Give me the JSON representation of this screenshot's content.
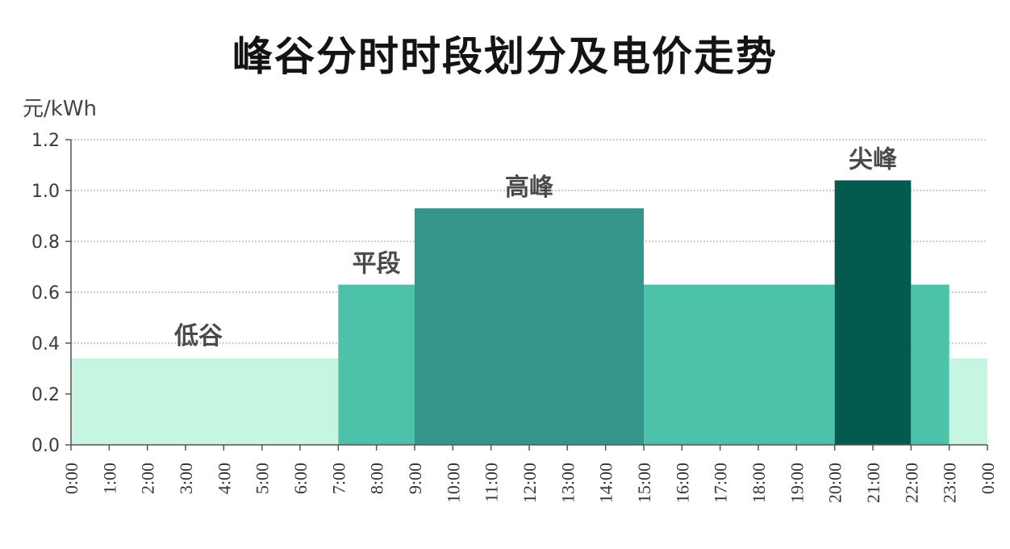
{
  "chart_data": {
    "type": "bar",
    "title": "峰谷分时时段划分及电价走势",
    "ylabel": "元/kWh",
    "xlabel": "",
    "ylim": [
      0,
      1.2
    ],
    "yticks": [
      "0.0",
      "0.2",
      "0.4",
      "0.6",
      "0.8",
      "1.0",
      "1.2"
    ],
    "x_ticks": [
      "0:00",
      "1:00",
      "2:00",
      "3:00",
      "4:00",
      "5:00",
      "6:00",
      "7:00",
      "8:00",
      "9:00",
      "10:00",
      "11:00",
      "12:00",
      "13:00",
      "14:00",
      "15:00",
      "16:00",
      "17:00",
      "18:00",
      "19:00",
      "20:00",
      "21:00",
      "22:00",
      "23:00",
      "0:00"
    ],
    "grid": true,
    "segments": [
      {
        "start": "0:00",
        "end": "7:00",
        "value": 0.34,
        "label": "低谷",
        "color": "#c6f5e1"
      },
      {
        "start": "7:00",
        "end": "9:00",
        "value": 0.63,
        "label": "平段",
        "color": "#4cc3a8"
      },
      {
        "start": "9:00",
        "end": "15:00",
        "value": 0.93,
        "label": "高峰",
        "color": "#35958a"
      },
      {
        "start": "15:00",
        "end": "20:00",
        "value": 0.63,
        "label": "",
        "color": "#4cc3a8"
      },
      {
        "start": "20:00",
        "end": "22:00",
        "value": 1.04,
        "label": "尖峰",
        "color": "#045a4e"
      },
      {
        "start": "22:00",
        "end": "23:00",
        "value": 0.63,
        "label": "",
        "color": "#4cc3a8"
      },
      {
        "start": "23:00",
        "end": "0:00",
        "value": 0.34,
        "label": "",
        "color": "#c6f5e1"
      }
    ],
    "colors": {
      "valley": "#c6f5e1",
      "flat": "#4cc3a8",
      "peak": "#35958a",
      "sharp_peak": "#045a4e",
      "grid": "#9a9a9a",
      "axis": "#555555"
    }
  }
}
